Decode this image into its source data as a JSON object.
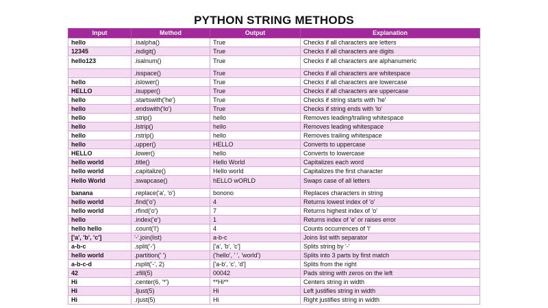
{
  "title": "PYTHON STRING METHODS",
  "colors": {
    "header_bg": "#a3289b",
    "header_text": "#ffffff",
    "row_stripe": "#f3dcf1",
    "grid": "#d9a5d5"
  },
  "table": {
    "headers": [
      "Input",
      "Method",
      "Output",
      "Explanation"
    ],
    "rows": [
      {
        "input": "hello",
        "method": ".isalpha()",
        "output": "True",
        "explanation": "Checks if all characters are letters"
      },
      {
        "input": "12345",
        "method": ".isdigit()",
        "output": "True",
        "explanation": "Checks if all characters are digits"
      },
      {
        "input": "hello123",
        "method": ".isalnum()",
        "output": "True",
        "explanation": "Checks if all characters are alphanumeric"
      },
      {
        "input": "",
        "method": ".isspace()",
        "output": "True",
        "explanation": "Checks if all characters are whitespace"
      },
      {
        "input": "hello",
        "method": ".islower()",
        "output": "True",
        "explanation": "Checks if all characters are lowercase"
      },
      {
        "input": "HELLO",
        "method": ".isupper()",
        "output": "True",
        "explanation": "Checks if all characters are uppercase"
      },
      {
        "input": "hello",
        "method": ".startswith('he')",
        "output": "True",
        "explanation": "Checks if string starts with 'he'"
      },
      {
        "input": "hello",
        "method": ".endswith('lo')",
        "output": "True",
        "explanation": "Checks if string ends with 'lo'"
      },
      {
        "input": " hello ",
        "method": ".strip()",
        "output": "hello",
        "explanation": "Removes leading/trailing whitespace"
      },
      {
        "input": " hello",
        "method": ".lstrip()",
        "output": "hello",
        "explanation": "Removes leading whitespace"
      },
      {
        "input": " hello ",
        "method": ".rstrip()",
        "output": " hello",
        "explanation": "Removes trailing whitespace"
      },
      {
        "input": "hello",
        "method": ".upper()",
        "output": "HELLO",
        "explanation": "Converts to uppercase"
      },
      {
        "input": "HELLO",
        "method": ".lower()",
        "output": "hello",
        "explanation": "Converts to lowercase"
      },
      {
        "input": "hello world",
        "method": ".title()",
        "output": "Hello World",
        "explanation": "Capitalizes each word"
      },
      {
        "input": "hello world",
        "method": ".capitalize()",
        "output": "Hello world",
        "explanation": "Capitalizes the first character"
      },
      {
        "input": "Hello World",
        "method": ".swapcase()",
        "output": "hELLO wORLD",
        "explanation": "Swaps case of all letters"
      },
      {
        "input": "banana",
        "method": ".replace('a', 'o')",
        "output": "bonono",
        "explanation": "Replaces characters in string"
      },
      {
        "input": "hello world",
        "method": ".find('o')",
        "output": "4",
        "explanation": "Returns lowest index of 'o'"
      },
      {
        "input": "hello world",
        "method": ".rfind('o')",
        "output": "7",
        "explanation": "Returns highest index of 'o'"
      },
      {
        "input": "hello",
        "method": ".index('e')",
        "output": "1",
        "explanation": "Returns index of 'e' or raises error"
      },
      {
        "input": "hello hello",
        "method": ".count('l')",
        "output": "4",
        "explanation": "Counts occurrences of 'l'"
      },
      {
        "input": "['a', 'b', 'c']",
        "method": "'-'.join(list)",
        "output": "a-b-c",
        "explanation": "Joins list with separator"
      },
      {
        "input": "a-b-c",
        "method": ".split('-')",
        "output": "['a', 'b', 'c']",
        "explanation": "Splits string by '-'"
      },
      {
        "input": "hello world",
        "method": ".partition(' ')",
        "output": "('hello', ' ', 'world')",
        "explanation": "Splits into 3 parts by first match"
      },
      {
        "input": "a-b-c-d",
        "method": ".rsplit('-', 2)",
        "output": "['a-b', 'c', 'd']",
        "explanation": "Splits from the right"
      },
      {
        "input": "42",
        "method": ".zfill(5)",
        "output": "00042",
        "explanation": "Pads string with zeros on the left"
      },
      {
        "input": "Hi",
        "method": ".center(6, '*')",
        "output": "**Hi**",
        "explanation": "Centers string in width"
      },
      {
        "input": "Hi",
        "method": ".ljust(5)",
        "output": "Hi",
        "explanation": "Left justifies string in width"
      },
      {
        "input": "Hi",
        "method": ".rjust(5)",
        "output": " Hi",
        "explanation": "Right justifies string in width"
      }
    ]
  }
}
